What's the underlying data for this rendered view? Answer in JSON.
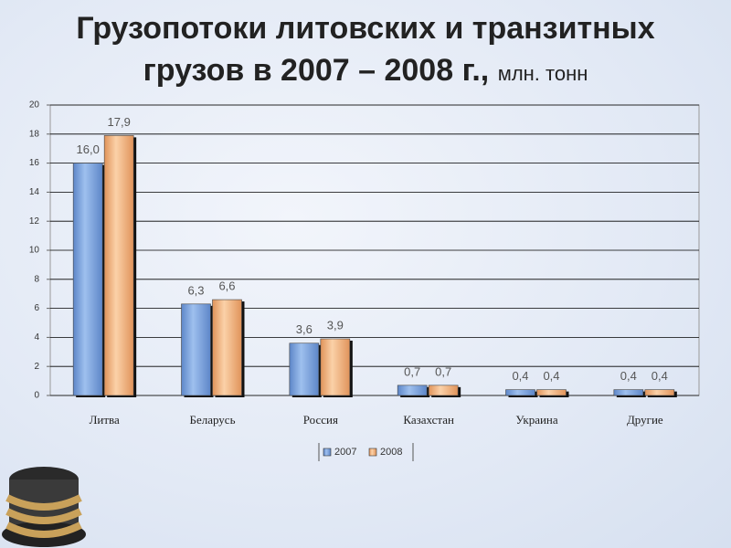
{
  "chart_data": {
    "type": "bar",
    "title": "Грузопотоки литовских и транзитных грузов в 2007 – 2008 г.,",
    "subtitle": "млн. тонн",
    "categories": [
      "Литва",
      "Беларусь",
      "Россия",
      "Казахстан",
      "Украина",
      "Другие"
    ],
    "series": [
      {
        "name": "2007",
        "color": "#7fa6df",
        "values": [
          16.0,
          6.3,
          3.6,
          0.7,
          0.4,
          0.4
        ],
        "value_labels": [
          "16,0",
          "6,3",
          "3,6",
          "0,7",
          "0,4",
          "0,4"
        ]
      },
      {
        "name": "2008",
        "color": "#f3b47c",
        "values": [
          17.9,
          6.6,
          3.9,
          0.7,
          0.4,
          0.4
        ],
        "value_labels": [
          "17,9",
          "6,6",
          "3,9",
          "0,7",
          "0,4",
          "0,4"
        ]
      }
    ],
    "ylim": [
      0,
      20
    ],
    "yticks": [
      0,
      2,
      4,
      6,
      8,
      10,
      12,
      14,
      16,
      18,
      20
    ],
    "grid": true,
    "legend": "bottom"
  }
}
